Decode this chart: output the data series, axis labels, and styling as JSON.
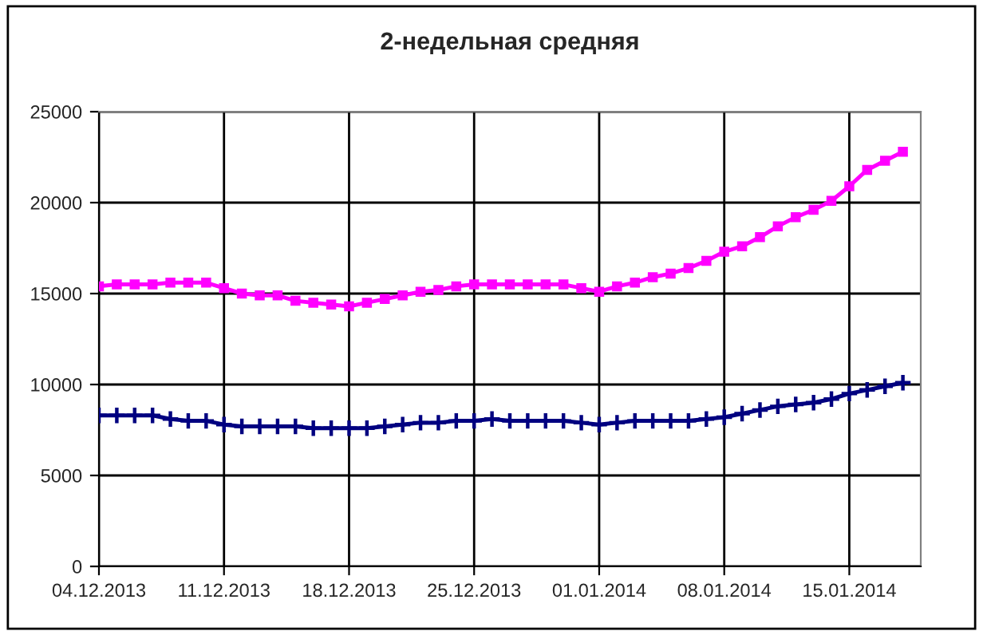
{
  "chart_data": {
    "type": "line",
    "title": "2-недельная средняя",
    "x": [
      "2013-12-04",
      "2013-12-05",
      "2013-12-06",
      "2013-12-07",
      "2013-12-08",
      "2013-12-09",
      "2013-12-10",
      "2013-12-11",
      "2013-12-12",
      "2013-12-13",
      "2013-12-14",
      "2013-12-15",
      "2013-12-16",
      "2013-12-17",
      "2013-12-18",
      "2013-12-19",
      "2013-12-20",
      "2013-12-21",
      "2013-12-22",
      "2013-12-23",
      "2013-12-24",
      "2013-12-25",
      "2013-12-26",
      "2013-12-27",
      "2013-12-28",
      "2013-12-29",
      "2013-12-30",
      "2013-12-31",
      "2014-01-01",
      "2014-01-02",
      "2014-01-03",
      "2014-01-04",
      "2014-01-05",
      "2014-01-06",
      "2014-01-07",
      "2014-01-08",
      "2014-01-09",
      "2014-01-10",
      "2014-01-11",
      "2014-01-12",
      "2014-01-13",
      "2014-01-14",
      "2014-01-15",
      "2014-01-16",
      "2014-01-17",
      "2014-01-18"
    ],
    "series": [
      {
        "color": "#ff00ff",
        "marker": "square",
        "values": [
          15400,
          15500,
          15500,
          15500,
          15600,
          15600,
          15600,
          15300,
          15000,
          14900,
          14900,
          14600,
          14500,
          14400,
          14300,
          14500,
          14700,
          14900,
          15100,
          15200,
          15400,
          15500,
          15500,
          15500,
          15500,
          15500,
          15500,
          15300,
          15100,
          15400,
          15600,
          15900,
          16100,
          16400,
          16800,
          17300,
          17600,
          18100,
          18700,
          19200,
          19600,
          20100,
          20900,
          21800,
          22300,
          22800
        ]
      },
      {
        "color": "#000080",
        "marker": "cross",
        "values": [
          8300,
          8300,
          8300,
          8300,
          8100,
          8000,
          8000,
          7800,
          7700,
          7700,
          7700,
          7700,
          7600,
          7600,
          7600,
          7600,
          7700,
          7800,
          7900,
          7900,
          8000,
          8000,
          8100,
          8000,
          8000,
          8000,
          8000,
          7900,
          7800,
          7900,
          8000,
          8000,
          8000,
          8000,
          8100,
          8200,
          8400,
          8600,
          8800,
          8900,
          9000,
          9200,
          9500,
          9700,
          9900,
          10100
        ]
      }
    ],
    "xlim": [
      "2013-12-04",
      "2014-01-19"
    ],
    "xticks": [
      {
        "value": "2013-12-04",
        "label": "04.12.2013"
      },
      {
        "value": "2013-12-11",
        "label": "11.12.2013"
      },
      {
        "value": "2013-12-18",
        "label": "18.12.2013"
      },
      {
        "value": "2013-12-25",
        "label": "25.12.2013"
      },
      {
        "value": "2014-01-01",
        "label": "01.01.2014"
      },
      {
        "value": "2014-01-08",
        "label": "08.01.2014"
      },
      {
        "value": "2014-01-15",
        "label": "15.01.2014"
      }
    ],
    "ylim": [
      0,
      25000
    ],
    "yticks": [
      0,
      5000,
      10000,
      15000,
      20000,
      25000
    ],
    "grid": true,
    "legend": false,
    "line_style": "solid"
  }
}
